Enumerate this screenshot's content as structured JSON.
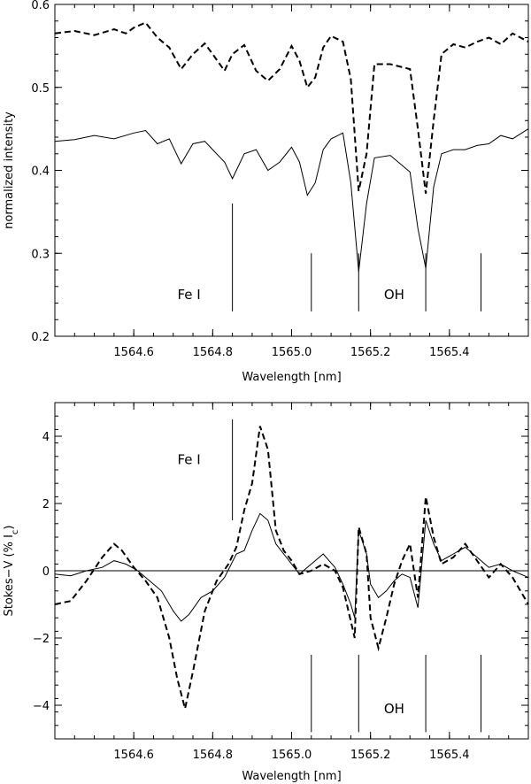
{
  "chart_data": [
    {
      "type": "line",
      "xlabel": "Wavelength [nm]",
      "ylabel": "normalized intensity",
      "xlim": [
        1564.4,
        1565.6
      ],
      "ylim": [
        0.2,
        0.6
      ],
      "xticks": [
        1564.6,
        1564.8,
        1565.0,
        1565.2,
        1565.4
      ],
      "xtick_labels": [
        "1564.6",
        "1564.8",
        "1565.0",
        "1565.2",
        "1565.4"
      ],
      "yticks": [
        0.2,
        0.3,
        0.4,
        0.5,
        0.6
      ],
      "ytick_labels": [
        "0.2",
        "0.3",
        "0.4",
        "0.5",
        "0.6"
      ],
      "series": [
        {
          "style": "dashed",
          "x": [
            1564.4,
            1564.45,
            1564.5,
            1564.55,
            1564.58,
            1564.6,
            1564.63,
            1564.66,
            1564.69,
            1564.72,
            1564.75,
            1564.78,
            1564.8,
            1564.83,
            1564.85,
            1564.88,
            1564.91,
            1564.94,
            1564.97,
            1565.0,
            1565.02,
            1565.04,
            1565.06,
            1565.08,
            1565.1,
            1565.13,
            1565.15,
            1565.17,
            1565.19,
            1565.21,
            1565.25,
            1565.3,
            1565.32,
            1565.34,
            1565.36,
            1565.38,
            1565.41,
            1565.44,
            1565.47,
            1565.5,
            1565.53,
            1565.56,
            1565.6
          ],
          "y": [
            0.565,
            0.568,
            0.563,
            0.57,
            0.565,
            0.572,
            0.578,
            0.56,
            0.548,
            0.522,
            0.54,
            0.553,
            0.54,
            0.52,
            0.54,
            0.551,
            0.52,
            0.508,
            0.522,
            0.55,
            0.532,
            0.5,
            0.512,
            0.548,
            0.562,
            0.555,
            0.51,
            0.375,
            0.42,
            0.528,
            0.528,
            0.522,
            0.45,
            0.372,
            0.46,
            0.54,
            0.552,
            0.548,
            0.555,
            0.56,
            0.552,
            0.565,
            0.555
          ]
        },
        {
          "style": "solid",
          "x": [
            1564.4,
            1564.45,
            1564.5,
            1564.55,
            1564.6,
            1564.63,
            1564.66,
            1564.69,
            1564.72,
            1564.75,
            1564.78,
            1564.8,
            1564.83,
            1564.85,
            1564.88,
            1564.91,
            1564.94,
            1564.97,
            1565.0,
            1565.02,
            1565.04,
            1565.06,
            1565.08,
            1565.1,
            1565.13,
            1565.15,
            1565.17,
            1565.19,
            1565.21,
            1565.25,
            1565.3,
            1565.32,
            1565.34,
            1565.36,
            1565.38,
            1565.41,
            1565.44,
            1565.47,
            1565.5,
            1565.53,
            1565.56,
            1565.6
          ],
          "y": [
            0.435,
            0.437,
            0.442,
            0.438,
            0.445,
            0.448,
            0.432,
            0.438,
            0.408,
            0.432,
            0.435,
            0.425,
            0.41,
            0.39,
            0.42,
            0.425,
            0.4,
            0.41,
            0.428,
            0.41,
            0.37,
            0.385,
            0.425,
            0.438,
            0.445,
            0.385,
            0.278,
            0.36,
            0.415,
            0.418,
            0.398,
            0.33,
            0.282,
            0.38,
            0.42,
            0.425,
            0.425,
            0.43,
            0.432,
            0.442,
            0.438,
            0.45
          ]
        }
      ],
      "markers": [
        {
          "x": 1564.85,
          "y_top": 0.36,
          "y_bottom": 0.23
        },
        {
          "x": 1565.05,
          "y_top": 0.3,
          "y_bottom": 0.23
        },
        {
          "x": 1565.17,
          "y_top": 0.3,
          "y_bottom": 0.23
        },
        {
          "x": 1565.34,
          "y_top": 0.3,
          "y_bottom": 0.23
        },
        {
          "x": 1565.48,
          "y_top": 0.3,
          "y_bottom": 0.23
        }
      ],
      "annotations": [
        {
          "text": "Fe I",
          "x": 1564.74,
          "y": 0.25
        },
        {
          "text": "OH",
          "x": 1565.26,
          "y": 0.25
        }
      ]
    },
    {
      "type": "line",
      "xlabel": "Wavelength [nm]",
      "ylabel": "Stokes−V (% I",
      "ylabel_sub": "c",
      "ylabel_end": ")",
      "xlim": [
        1564.4,
        1565.6
      ],
      "ylim": [
        -5,
        5
      ],
      "xticks": [
        1564.6,
        1564.8,
        1565.0,
        1565.2,
        1565.4
      ],
      "xtick_labels": [
        "1564.6",
        "1564.8",
        "1565.0",
        "1565.2",
        "1565.4"
      ],
      "yticks": [
        -4,
        -2,
        0,
        2,
        4
      ],
      "ytick_labels": [
        "−4",
        "−2",
        "0",
        "2",
        "4"
      ],
      "zero_line": 0,
      "series": [
        {
          "style": "dashed",
          "x": [
            1564.4,
            1564.44,
            1564.48,
            1564.52,
            1564.55,
            1564.57,
            1564.6,
            1564.63,
            1564.66,
            1564.69,
            1564.71,
            1564.73,
            1564.75,
            1564.78,
            1564.81,
            1564.84,
            1564.86,
            1564.88,
            1564.9,
            1564.92,
            1564.94,
            1564.96,
            1564.98,
            1565.0,
            1565.02,
            1565.05,
            1565.08,
            1565.11,
            1565.13,
            1565.15,
            1565.16,
            1565.17,
            1565.19,
            1565.2,
            1565.22,
            1565.24,
            1565.26,
            1565.28,
            1565.3,
            1565.32,
            1565.34,
            1565.36,
            1565.38,
            1565.41,
            1565.44,
            1565.47,
            1565.5,
            1565.53,
            1565.56,
            1565.6
          ],
          "y": [
            -1.0,
            -0.9,
            -0.3,
            0.4,
            0.8,
            0.6,
            0.1,
            -0.3,
            -0.8,
            -2.0,
            -3.2,
            -4.1,
            -3.0,
            -1.2,
            -0.3,
            0.2,
            0.7,
            1.8,
            2.6,
            4.3,
            3.6,
            1.2,
            0.6,
            0.3,
            -0.1,
            0.0,
            0.2,
            0.0,
            -0.5,
            -1.5,
            -2.0,
            1.3,
            0.5,
            -1.4,
            -2.3,
            -1.4,
            -0.4,
            0.3,
            0.8,
            -0.8,
            2.2,
            1.0,
            0.2,
            0.4,
            0.8,
            0.3,
            -0.2,
            0.2,
            -0.2,
            -1.0
          ]
        },
        {
          "style": "solid",
          "x": [
            1564.4,
            1564.44,
            1564.48,
            1564.52,
            1564.55,
            1564.58,
            1564.61,
            1564.64,
            1564.67,
            1564.7,
            1564.72,
            1564.74,
            1564.77,
            1564.8,
            1564.83,
            1564.86,
            1564.88,
            1564.9,
            1564.92,
            1564.94,
            1564.96,
            1564.98,
            1565.0,
            1565.02,
            1565.05,
            1565.08,
            1565.11,
            1565.13,
            1565.15,
            1565.16,
            1565.17,
            1565.19,
            1565.2,
            1565.22,
            1565.24,
            1565.26,
            1565.28,
            1565.3,
            1565.32,
            1565.34,
            1565.36,
            1565.38,
            1565.41,
            1565.44,
            1565.47,
            1565.5,
            1565.53,
            1565.56,
            1565.6
          ],
          "y": [
            -0.1,
            -0.15,
            0.0,
            0.1,
            0.3,
            0.2,
            0.0,
            -0.3,
            -0.6,
            -1.2,
            -1.5,
            -1.3,
            -0.8,
            -0.6,
            -0.2,
            0.5,
            0.6,
            1.2,
            1.7,
            1.5,
            0.8,
            0.5,
            0.2,
            -0.1,
            0.2,
            0.5,
            0.1,
            -0.4,
            -1.0,
            -1.4,
            1.2,
            0.5,
            -0.4,
            -0.8,
            -0.6,
            -0.3,
            -0.1,
            -0.2,
            -1.1,
            1.5,
            0.8,
            0.3,
            0.5,
            0.7,
            0.4,
            0.1,
            0.2,
            0.0,
            -0.2
          ]
        }
      ],
      "markers": [
        {
          "x": 1564.85,
          "y_top": 4.5,
          "y_bottom": 1.5
        },
        {
          "x": 1565.05,
          "y_top": -2.5,
          "y_bottom": -4.8
        },
        {
          "x": 1565.17,
          "y_top": -2.5,
          "y_bottom": -4.8
        },
        {
          "x": 1565.34,
          "y_top": -2.5,
          "y_bottom": -4.8
        },
        {
          "x": 1565.48,
          "y_top": -2.5,
          "y_bottom": -4.8
        }
      ],
      "annotations": [
        {
          "text": "Fe I",
          "x": 1564.74,
          "y": 3.3
        },
        {
          "text": "OH",
          "x": 1565.26,
          "y": -4.1
        }
      ]
    }
  ]
}
